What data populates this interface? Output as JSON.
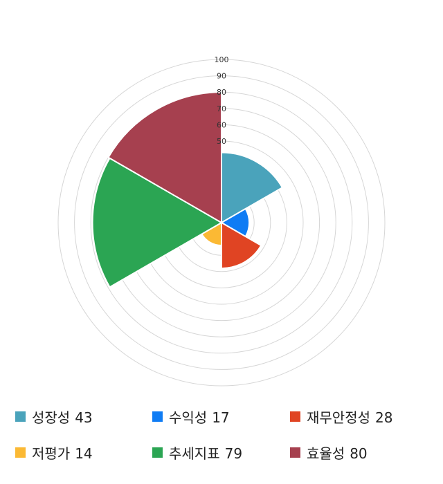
{
  "chart_data": {
    "type": "polar-area",
    "title": "",
    "rlim": [
      0,
      100
    ],
    "r_ticks": [
      "100",
      "90",
      "80",
      "70",
      "60",
      "50"
    ],
    "grid": true,
    "legend_position": "bottom",
    "categories": [
      "성장성",
      "수익성",
      "재무안정성",
      "저평가",
      "추세지표",
      "효율성"
    ],
    "values": [
      43,
      17,
      28,
      14,
      79,
      80
    ],
    "colors": [
      "#4aa3bb",
      "#0f7cf4",
      "#e04423",
      "#fbb934",
      "#2ba553",
      "#a6404f"
    ]
  }
}
